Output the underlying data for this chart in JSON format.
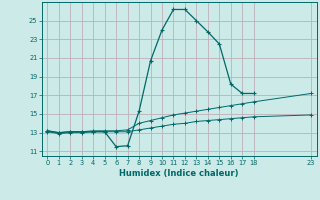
{
  "bg_color": "#cceae8",
  "grid_color": "#c0b0b8",
  "line_color": "#006868",
  "xlabel": "Humidex (Indice chaleur)",
  "xlim": [
    -0.5,
    23.5
  ],
  "ylim": [
    10.5,
    27.0
  ],
  "yticks": [
    11,
    13,
    15,
    17,
    19,
    21,
    23,
    25
  ],
  "xticks": [
    0,
    1,
    2,
    3,
    4,
    5,
    6,
    7,
    8,
    9,
    10,
    11,
    12,
    13,
    14,
    15,
    16,
    17,
    18,
    23
  ],
  "curve1_x": [
    0,
    1,
    2,
    3,
    4,
    5,
    6,
    7,
    8,
    9,
    10,
    11,
    12,
    13,
    14,
    15,
    16,
    17,
    18
  ],
  "curve1_y": [
    13.2,
    13.0,
    13.1,
    13.1,
    13.1,
    13.1,
    11.5,
    11.6,
    15.3,
    20.7,
    24.0,
    26.2,
    26.2,
    25.0,
    23.8,
    22.5,
    18.2,
    17.2,
    17.2
  ],
  "curve2_x": [
    0,
    1,
    2,
    3,
    4,
    5,
    6,
    7,
    8,
    9,
    10,
    11,
    12,
    13,
    14,
    15,
    16,
    17,
    18,
    23
  ],
  "curve2_y": [
    13.2,
    13.0,
    13.1,
    13.1,
    13.2,
    13.2,
    13.2,
    13.3,
    14.0,
    14.3,
    14.6,
    14.9,
    15.1,
    15.3,
    15.5,
    15.7,
    15.9,
    16.1,
    16.3,
    17.2
  ],
  "curve3_x": [
    0,
    1,
    2,
    3,
    4,
    5,
    6,
    7,
    8,
    9,
    10,
    11,
    12,
    13,
    14,
    15,
    16,
    17,
    18,
    23
  ],
  "curve3_y": [
    13.1,
    12.9,
    13.0,
    13.0,
    13.1,
    13.1,
    13.1,
    13.1,
    13.3,
    13.5,
    13.7,
    13.9,
    14.0,
    14.2,
    14.3,
    14.4,
    14.5,
    14.6,
    14.7,
    14.9
  ]
}
